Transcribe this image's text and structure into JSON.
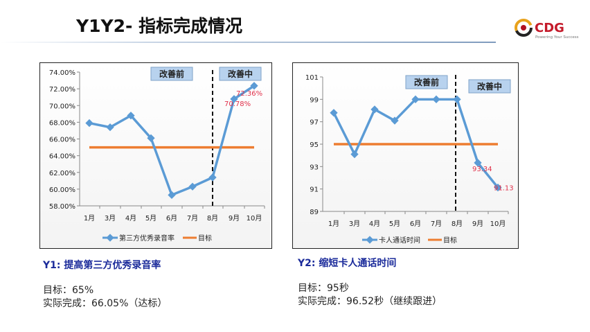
{
  "header": {
    "title": "Y1Y2- 指标完成情况",
    "logo_text": "CDG",
    "logo_tagline": "Powering Your Success"
  },
  "colors": {
    "series": "#5b9bd5",
    "target": "#ed7d31",
    "label": "#e0304a",
    "box": "#b8d2ee"
  },
  "chart_data": [
    {
      "type": "line",
      "categories": [
        "1月",
        "3月",
        "4月",
        "5月",
        "6月",
        "7月",
        "8月",
        "9月",
        "10月"
      ],
      "series": [
        {
          "name": "第三方优秀录音率",
          "values": [
            67.9,
            67.4,
            68.8,
            66.1,
            59.3,
            60.3,
            61.4,
            70.78,
            72.36
          ]
        },
        {
          "name": "目标",
          "values": [
            65,
            65,
            65,
            65,
            65,
            65,
            65,
            65,
            65
          ]
        }
      ],
      "ylim": [
        58,
        74
      ],
      "yticks": [
        "58.00%",
        "60.00%",
        "62.00%",
        "64.00%",
        "66.00%",
        "68.00%",
        "70.00%",
        "72.00%",
        "74.00%"
      ],
      "data_labels": [
        "70.78%",
        "72.36%"
      ],
      "annotations": [
        "改善前",
        "改善中"
      ],
      "legend": "bottom"
    },
    {
      "type": "line",
      "categories": [
        "1月",
        "3月",
        "4月",
        "5月",
        "6月",
        "7月",
        "8月",
        "9月",
        "10月"
      ],
      "series": [
        {
          "name": "卡人通话时间",
          "values": [
            97.8,
            94.1,
            98.1,
            97.1,
            99,
            99,
            99,
            93.34,
            91.13
          ]
        },
        {
          "name": "目标",
          "values": [
            95,
            95,
            95,
            95,
            95,
            95,
            95,
            95,
            95
          ]
        }
      ],
      "ylim": [
        89,
        101
      ],
      "yticks": [
        "89",
        "91",
        "93",
        "95",
        "97",
        "99",
        "101"
      ],
      "data_labels": [
        "93.34",
        "91.13"
      ],
      "annotations": [
        "改善前",
        "改善中"
      ],
      "legend": "bottom"
    }
  ],
  "y1": {
    "heading": "Y1: 提高第三方优秀录音率",
    "target": "目标：65%",
    "actual": "实际完成：66.05%（达标）"
  },
  "y2": {
    "heading": "Y2: 缩短卡人通话时间",
    "target": "目标：95秒",
    "actual": "实际完成：96.52秒（继续跟进）"
  }
}
